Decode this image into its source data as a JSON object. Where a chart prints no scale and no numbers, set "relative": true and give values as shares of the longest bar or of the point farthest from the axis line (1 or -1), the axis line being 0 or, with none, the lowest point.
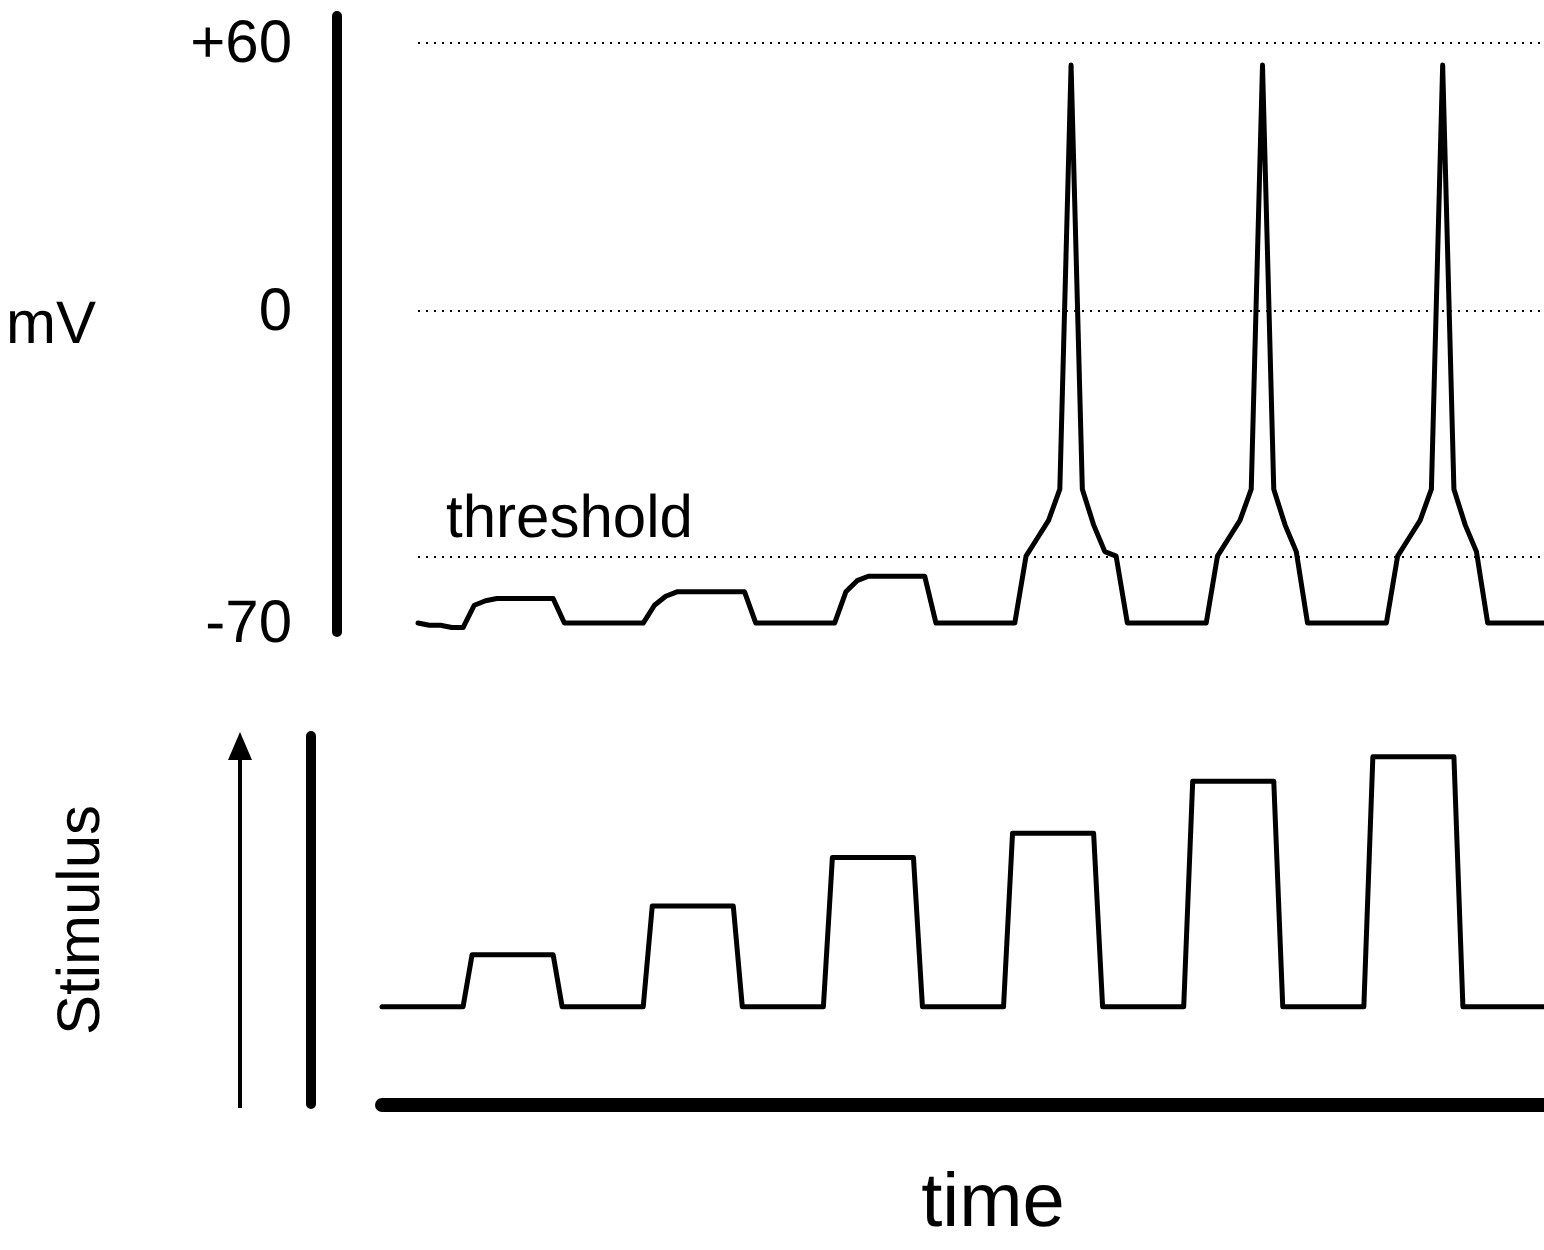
{
  "chart_data": [
    {
      "type": "line",
      "ylabel": "mV",
      "categories": [
        null,
        null,
        null,
        null,
        null,
        null,
        null,
        null,
        null,
        null,
        null,
        null,
        null,
        null,
        null,
        null,
        null,
        null,
        null,
        null,
        null,
        null,
        null,
        null,
        null,
        null,
        null,
        null,
        null,
        null,
        null,
        null,
        null,
        null,
        null,
        null,
        null,
        null,
        null,
        null,
        null,
        null,
        null,
        null,
        null,
        null,
        null,
        null,
        null,
        null,
        null,
        null,
        null,
        null,
        null,
        null,
        null,
        null,
        null,
        null,
        null,
        null,
        null,
        null,
        null,
        null,
        null,
        null,
        null,
        null,
        null,
        null,
        null,
        null,
        null,
        null,
        null,
        null,
        null,
        null,
        null,
        null,
        null,
        null,
        null,
        null,
        null,
        null,
        null,
        null,
        null,
        null,
        null,
        null,
        null,
        null,
        null,
        null,
        null,
        null,
        null
      ],
      "ylim": [
        -72,
        66
      ],
      "yticks": [
        {
          "value": 60,
          "label": "+60"
        },
        0,
        -70
      ],
      "tick_labels": "y",
      "marker": "none",
      "ref_lines": [
        {
          "axis": "y",
          "value": 60,
          "label": null,
          "line_style": "dotted"
        },
        {
          "axis": "y",
          "value": 0,
          "label": null,
          "line_style": "dotted"
        },
        {
          "axis": "y",
          "value": -55,
          "label": "threshold",
          "line_style": "dotted"
        }
      ],
      "series": [
        {
          "color": "#000000",
          "values": [
            -70,
            -70.5,
            -70.5,
            -71,
            -71,
            -66,
            -65,
            -64.5,
            -64.5,
            -64.5,
            -64.5,
            -64.5,
            -64.5,
            -70,
            -70,
            -70,
            -70,
            -70,
            -70,
            -70,
            -70,
            -66,
            -64,
            -63,
            -63,
            -63,
            -63,
            -63,
            -63,
            -63,
            -70,
            -70,
            -70,
            -70,
            -70,
            -70,
            -70,
            -70,
            -63,
            -60.5,
            -59.5,
            -59.5,
            -59.5,
            -59.5,
            -59.5,
            -59.5,
            -70,
            -70,
            -70,
            -70,
            -70,
            -70,
            -70,
            -70,
            -55,
            -51,
            -47,
            -40,
            55,
            -40,
            -48,
            -54,
            -55,
            -70,
            -70,
            -70,
            -70,
            -70,
            -70,
            -70,
            -70,
            -55,
            -51,
            -47,
            -40,
            55,
            -40,
            -48,
            -54,
            -70,
            -70,
            -70,
            -70,
            -70,
            -70,
            -70,
            -70,
            -55,
            -51,
            -47,
            -40,
            55,
            -40,
            -48,
            -54,
            -70,
            -70,
            -70,
            -70,
            -70,
            -70
          ]
        }
      ]
    },
    {
      "type": "line",
      "relative": true,
      "ylabel": "Stimulus",
      "xlabel": "time",
      "categories": [
        null,
        null,
        null,
        null,
        null,
        null,
        null,
        null,
        null,
        null,
        null,
        null,
        null,
        null,
        null,
        null,
        null,
        null,
        null,
        null,
        null,
        null,
        null,
        null,
        null,
        null,
        null,
        null,
        null,
        null,
        null,
        null,
        null,
        null,
        null,
        null,
        null,
        null,
        null,
        null,
        null,
        null,
        null,
        null,
        null,
        null,
        null,
        null,
        null,
        null,
        null,
        null,
        null,
        null,
        null,
        null,
        null,
        null,
        null,
        null,
        null,
        null,
        null,
        null,
        null,
        null,
        null,
        null,
        null,
        null,
        null,
        null,
        null,
        null,
        null,
        null,
        null,
        null,
        null,
        null,
        null,
        null,
        null,
        null,
        null,
        null,
        null,
        null,
        null,
        null,
        null,
        null,
        null,
        null,
        null,
        null,
        null,
        null,
        null,
        null,
        null,
        null,
        null,
        null,
        null,
        null,
        null,
        null,
        null,
        null,
        null,
        null,
        null,
        null,
        null,
        null,
        null,
        null,
        null,
        null,
        null,
        null,
        null,
        null,
        null,
        null,
        null,
        null,
        null,
        null
      ],
      "tick_labels": false,
      "marker": "none",
      "series": [
        {
          "color": "#000000",
          "values": [
            0.28,
            0.28,
            0.28,
            0.28,
            0.28,
            0.28,
            0.28,
            0.28,
            0.28,
            0.28,
            0.43,
            0.43,
            0.43,
            0.43,
            0.43,
            0.43,
            0.43,
            0.43,
            0.43,
            0.43,
            0.28,
            0.28,
            0.28,
            0.28,
            0.28,
            0.28,
            0.28,
            0.28,
            0.28,
            0.28,
            0.57,
            0.57,
            0.57,
            0.57,
            0.57,
            0.57,
            0.57,
            0.57,
            0.57,
            0.57,
            0.28,
            0.28,
            0.28,
            0.28,
            0.28,
            0.28,
            0.28,
            0.28,
            0.28,
            0.28,
            0.71,
            0.71,
            0.71,
            0.71,
            0.71,
            0.71,
            0.71,
            0.71,
            0.71,
            0.71,
            0.28,
            0.28,
            0.28,
            0.28,
            0.28,
            0.28,
            0.28,
            0.28,
            0.28,
            0.28,
            0.78,
            0.78,
            0.78,
            0.78,
            0.78,
            0.78,
            0.78,
            0.78,
            0.78,
            0.78,
            0.28,
            0.28,
            0.28,
            0.28,
            0.28,
            0.28,
            0.28,
            0.28,
            0.28,
            0.28,
            0.93,
            0.93,
            0.93,
            0.93,
            0.93,
            0.93,
            0.93,
            0.93,
            0.93,
            0.93,
            0.28,
            0.28,
            0.28,
            0.28,
            0.28,
            0.28,
            0.28,
            0.28,
            0.28,
            0.28,
            1,
            1,
            1,
            1,
            1,
            1,
            1,
            1,
            1,
            1,
            0.28,
            0.28,
            0.28,
            0.28,
            0.28,
            0.28,
            0.28,
            0.28,
            0.28,
            0.28
          ]
        }
      ]
    }
  ]
}
